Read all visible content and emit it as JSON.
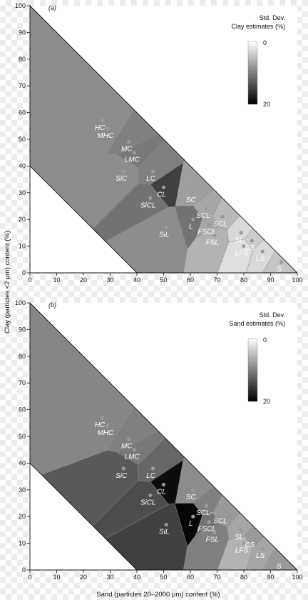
{
  "figure": {
    "y_axis_title": "Clay (particles <2 μm) content (%)",
    "x_axis_title": "Sand (particles 20–2000 μm) content (%)"
  },
  "chart_data": [
    {
      "type": "heatmap",
      "panel_label": "(a)",
      "legend": {
        "title_line1": "Std. Dev.",
        "title_line2": "Clay estimates (%)",
        "min_label": "0",
        "max_label": "20",
        "scale": "white = 0, black = 20",
        "placement": "top-right"
      },
      "xlim": [
        0,
        100
      ],
      "ylim": [
        0,
        100
      ],
      "x_ticks": [
        0,
        10,
        20,
        30,
        40,
        50,
        60,
        70,
        80,
        90,
        100
      ],
      "y_ticks": [
        0,
        10,
        20,
        30,
        40,
        50,
        60,
        70,
        80,
        90,
        100
      ],
      "boundary_lines": [
        {
          "from": [
            0,
            100
          ],
          "to": [
            100,
            0
          ]
        },
        {
          "from": [
            0,
            40
          ],
          "to": [
            40,
            0
          ]
        }
      ],
      "classes": [
        {
          "label": "HC",
          "sand": 27,
          "clay": 57,
          "std": 9
        },
        {
          "label": "MHC",
          "sand": 29,
          "clay": 54,
          "std": 9
        },
        {
          "label": "MC",
          "sand": 37,
          "clay": 49,
          "std": 10
        },
        {
          "label": "LMC",
          "sand": 39,
          "clay": 45,
          "std": 10.5
        },
        {
          "label": "LC",
          "sand": 46,
          "clay": 38,
          "std": 10
        },
        {
          "label": "SiC",
          "sand": 35,
          "clay": 38,
          "std": 9
        },
        {
          "label": "SiCL",
          "sand": 45,
          "clay": 28,
          "std": 11
        },
        {
          "label": "CL",
          "sand": 50,
          "clay": 32,
          "std": 15
        },
        {
          "label": "SC",
          "sand": 61,
          "clay": 30,
          "std": 7.5
        },
        {
          "label": "SCL-",
          "sand": 66,
          "clay": 24,
          "std": 7
        },
        {
          "label": "SCL",
          "sand": 72,
          "clay": 21,
          "std": 5.5
        },
        {
          "label": "L",
          "sand": 61,
          "clay": 20,
          "std": 11
        },
        {
          "label": "FSCL",
          "sand": 67,
          "clay": 18,
          "std": 7
        },
        {
          "label": "SiL",
          "sand": 51,
          "clay": 17,
          "std": 9
        },
        {
          "label": "FSL",
          "sand": 69,
          "clay": 14,
          "std": 6
        },
        {
          "label": "SL",
          "sand": 79,
          "clay": 15,
          "std": 3
        },
        {
          "label": "CS",
          "sand": 83,
          "clay": 12,
          "std": 4
        },
        {
          "label": "LFS",
          "sand": 80,
          "clay": 10,
          "std": 2.5
        },
        {
          "label": "LS",
          "sand": 87,
          "clay": 8,
          "std": 3
        },
        {
          "label": "S",
          "sand": 94,
          "clay": 4,
          "std": 4.5
        }
      ]
    },
    {
      "type": "heatmap",
      "panel_label": "(b)",
      "legend": {
        "title_line1": "Std. Dev.",
        "title_line2": "Sand estimates (%)",
        "min_label": "0",
        "max_label": "20",
        "scale": "white = 0, black = 20",
        "placement": "top-right"
      },
      "xlim": [
        0,
        100
      ],
      "ylim": [
        0,
        100
      ],
      "x_ticks": [
        0,
        10,
        20,
        30,
        40,
        50,
        60,
        70,
        80,
        90,
        100
      ],
      "y_ticks": [
        0,
        10,
        20,
        30,
        40,
        50,
        60,
        70,
        80,
        90,
        100
      ],
      "boundary_lines": [
        {
          "from": [
            0,
            100
          ],
          "to": [
            100,
            0
          ]
        },
        {
          "from": [
            0,
            40
          ],
          "to": [
            40,
            0
          ]
        }
      ],
      "classes": [
        {
          "label": "HC",
          "sand": 27,
          "clay": 57,
          "std": 9.5
        },
        {
          "label": "MHC",
          "sand": 29,
          "clay": 54,
          "std": 9.5
        },
        {
          "label": "MC",
          "sand": 37,
          "clay": 49,
          "std": 10
        },
        {
          "label": "LMC",
          "sand": 39,
          "clay": 45,
          "std": 10.5
        },
        {
          "label": "LC",
          "sand": 46,
          "clay": 38,
          "std": 12
        },
        {
          "label": "SiC",
          "sand": 35,
          "clay": 38,
          "std": 13
        },
        {
          "label": "SiCL",
          "sand": 45,
          "clay": 28,
          "std": 14
        },
        {
          "label": "CL",
          "sand": 50,
          "clay": 32,
          "std": 19
        },
        {
          "label": "SC",
          "sand": 61,
          "clay": 30,
          "std": 9
        },
        {
          "label": "SCL-",
          "sand": 66,
          "clay": 24,
          "std": 10
        },
        {
          "label": "SCL",
          "sand": 72,
          "clay": 21,
          "std": 8
        },
        {
          "label": "L",
          "sand": 61,
          "clay": 20,
          "std": 19.5
        },
        {
          "label": "FSCL",
          "sand": 67,
          "clay": 18,
          "std": 11
        },
        {
          "label": "SiL",
          "sand": 51,
          "clay": 17,
          "std": 15
        },
        {
          "label": "FSL",
          "sand": 69,
          "clay": 14,
          "std": 10
        },
        {
          "label": "SL",
          "sand": 79,
          "clay": 15,
          "std": 7
        },
        {
          "label": "CS",
          "sand": 83,
          "clay": 12,
          "std": 8
        },
        {
          "label": "LFS",
          "sand": 80,
          "clay": 10,
          "std": 6
        },
        {
          "label": "LS",
          "sand": 87,
          "clay": 8,
          "std": 7
        },
        {
          "label": "S",
          "sand": 94,
          "clay": 4,
          "std": 8
        }
      ]
    }
  ]
}
